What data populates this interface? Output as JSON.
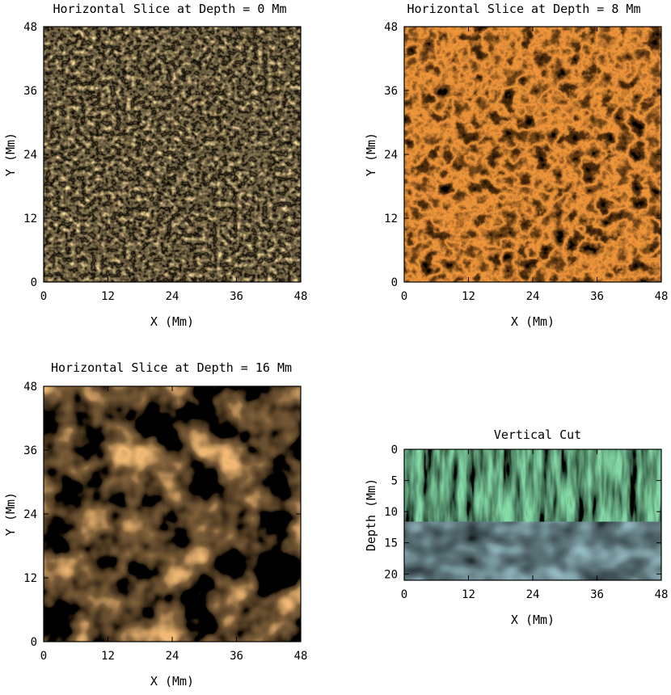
{
  "chart_data": [
    {
      "type": "heatmap",
      "title": "Horizontal Slice at Depth = 0 Mm",
      "xlabel": "X (Mm)",
      "ylabel": "Y (Mm)",
      "xlim": [
        0,
        48
      ],
      "ylim": [
        0,
        48
      ],
      "xticks": [
        "0",
        "12",
        "24",
        "36",
        "48"
      ],
      "yticks": [
        "0",
        "12",
        "24",
        "36",
        "48"
      ],
      "colormap": "red-temperature",
      "colors": {
        "low": "#5a0000",
        "mid": "#d2400a",
        "high": "#fff0a0"
      }
    },
    {
      "type": "heatmap",
      "title": "Horizontal Slice at Depth = 8 Mm",
      "xlabel": "X (Mm)",
      "ylabel": "Y (Mm)",
      "xlim": [
        0,
        48
      ],
      "ylim": [
        0,
        48
      ],
      "xticks": [
        "0",
        "12",
        "24",
        "36",
        "48"
      ],
      "yticks": [
        "0",
        "12",
        "24",
        "36",
        "48"
      ],
      "colormap": "red-temperature",
      "colors": {
        "low": "#2a0000",
        "mid": "#a01800",
        "high": "#ffe080"
      }
    },
    {
      "type": "heatmap",
      "title": "Horizontal Slice at Depth = 16 Mm",
      "xlabel": "X (Mm)",
      "ylabel": "Y (Mm)",
      "xlim": [
        0,
        48
      ],
      "ylim": [
        0,
        48
      ],
      "xticks": [
        "0",
        "12",
        "24",
        "36",
        "48"
      ],
      "yticks": [
        "0",
        "12",
        "24",
        "36",
        "48"
      ],
      "colormap": "red-temperature",
      "colors": {
        "low": "#1e0000",
        "mid": "#8c1400",
        "high": "#fff4c8"
      }
    },
    {
      "type": "heatmap",
      "title": "Vertical Cut",
      "xlabel": "X (Mm)",
      "ylabel": "Depth (Mm)",
      "xlim": [
        0,
        48
      ],
      "ylim": [
        0,
        21
      ],
      "xticks": [
        "0",
        "12",
        "24",
        "36",
        "48"
      ],
      "yticks": [
        "0",
        "5",
        "10",
        "15",
        "20"
      ],
      "y_inverted": true,
      "colormap": "rainbow",
      "colors": {
        "low": "#0a2ad0",
        "mid": "#46c8f0",
        "high": "#ff3000"
      }
    }
  ]
}
